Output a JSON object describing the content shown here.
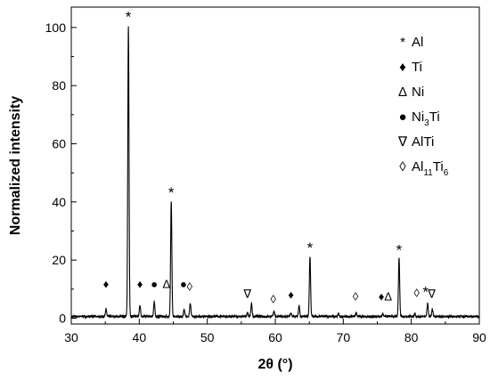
{
  "chart_data": {
    "type": "line",
    "title": "",
    "xlabel": "2θ (°)",
    "ylabel": "Normalized intensity",
    "xlim": [
      30,
      90
    ],
    "ylim": [
      -2,
      107
    ],
    "x_ticks": [
      "30",
      "40",
      "50",
      "60",
      "70",
      "80",
      "90"
    ],
    "y_ticks": [
      "0",
      "20",
      "40",
      "60",
      "80",
      "100"
    ],
    "grid": false,
    "legend_position": "top-right",
    "legend": [
      {
        "symbol": "*",
        "label": "Al"
      },
      {
        "symbol": "♦",
        "label": "Ti"
      },
      {
        "symbol": "Δ",
        "label": "Ni"
      },
      {
        "symbol": "●",
        "label": "Ni",
        "sub": "3",
        "suffix": "Ti"
      },
      {
        "symbol": "∇",
        "label": "AlTi"
      },
      {
        "symbol": "◊",
        "label": "Al",
        "sub": "11",
        "suffix": "Ti",
        "sub2": "6"
      }
    ],
    "baseline": 0.6,
    "peaks": [
      {
        "x": 35.1,
        "y": 3.2
      },
      {
        "x": 38.4,
        "y": 100.5
      },
      {
        "x": 40.1,
        "y": 4.5
      },
      {
        "x": 42.2,
        "y": 5.5
      },
      {
        "x": 44.7,
        "y": 40.0
      },
      {
        "x": 46.6,
        "y": 3.0
      },
      {
        "x": 47.5,
        "y": 5.3
      },
      {
        "x": 55.9,
        "y": 2.0
      },
      {
        "x": 56.5,
        "y": 5.0
      },
      {
        "x": 59.8,
        "y": 2.5
      },
      {
        "x": 62.3,
        "y": 1.8
      },
      {
        "x": 63.5,
        "y": 4.3
      },
      {
        "x": 65.1,
        "y": 21.3
      },
      {
        "x": 69.3,
        "y": 1.6
      },
      {
        "x": 71.9,
        "y": 1.8
      },
      {
        "x": 75.8,
        "y": 1.5
      },
      {
        "x": 78.2,
        "y": 20.5
      },
      {
        "x": 80.5,
        "y": 1.6
      },
      {
        "x": 82.4,
        "y": 5.1
      },
      {
        "x": 83.1,
        "y": 3.0
      }
    ],
    "annotations": [
      {
        "x": 38.4,
        "y": 103.5,
        "symbol": "*"
      },
      {
        "x": 44.7,
        "y": 43.0,
        "symbol": "*"
      },
      {
        "x": 65.1,
        "y": 24.0,
        "symbol": "*"
      },
      {
        "x": 78.2,
        "y": 23.2,
        "symbol": "*"
      },
      {
        "x": 35.1,
        "y": 12.0,
        "symbol": "♦"
      },
      {
        "x": 40.1,
        "y": 12.0,
        "symbol": "♦"
      },
      {
        "x": 62.3,
        "y": 8.2,
        "symbol": "♦"
      },
      {
        "x": 75.6,
        "y": 7.6,
        "symbol": "♦"
      },
      {
        "x": 42.2,
        "y": 12.0,
        "symbol": "●"
      },
      {
        "x": 46.5,
        "y": 12.0,
        "symbol": "●"
      },
      {
        "x": 44.0,
        "y": 12.0,
        "symbol": "Δ"
      },
      {
        "x": 76.6,
        "y": 7.6,
        "symbol": "Δ"
      },
      {
        "x": 47.4,
        "y": 11.0,
        "symbol": "◊"
      },
      {
        "x": 59.7,
        "y": 6.8,
        "symbol": "◊"
      },
      {
        "x": 71.8,
        "y": 7.6,
        "symbol": "◊"
      },
      {
        "x": 80.8,
        "y": 8.8,
        "symbol": "◊"
      },
      {
        "x": 55.9,
        "y": 8.5,
        "symbol": "∇"
      },
      {
        "x": 83.0,
        "y": 8.5,
        "symbol": "∇"
      },
      {
        "x": 82.1,
        "y": 8.8,
        "symbol": "*"
      }
    ],
    "colors": {
      "line": "#000000",
      "axis": "#000000",
      "background": "#ffffff"
    }
  }
}
